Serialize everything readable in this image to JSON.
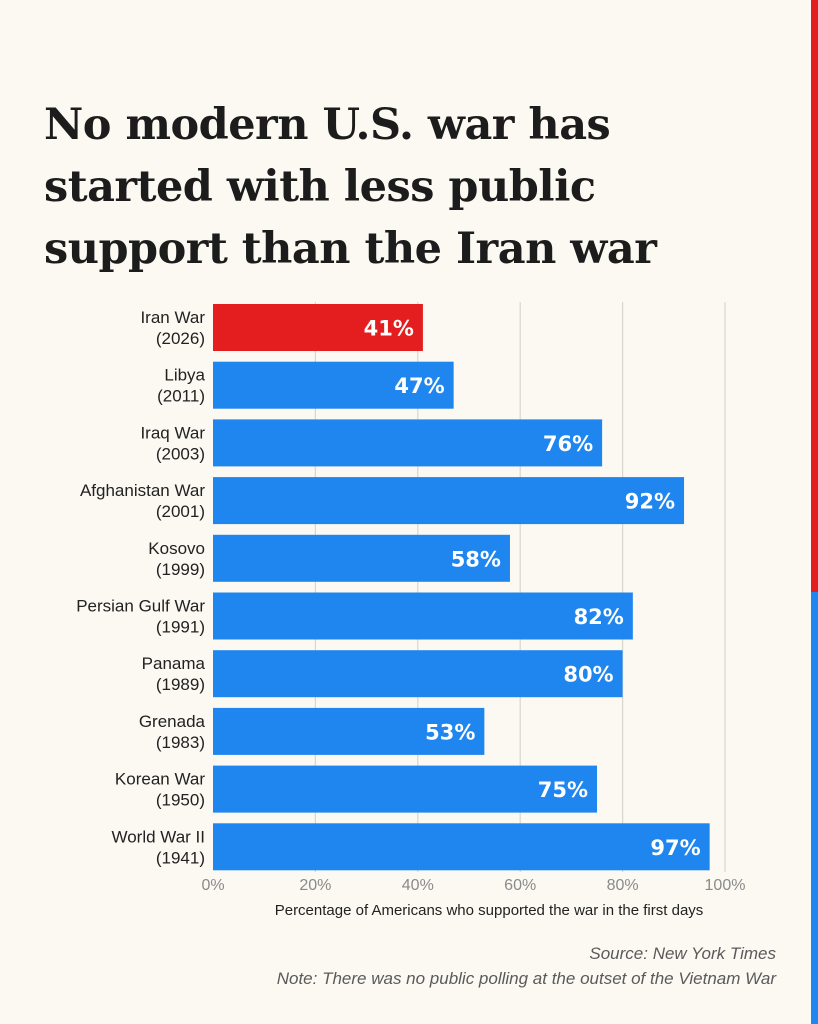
{
  "title": "No modern U.S. war has started with less public support than the Iran war",
  "colors": {
    "highlight": "#e41e1e",
    "bar": "#1f86f0",
    "grid": "#d9d6cd",
    "label": "#222222",
    "value_text": "#ffffff"
  },
  "chart_data": {
    "type": "bar",
    "orientation": "horizontal",
    "categories": [
      "Iran War|(2026)",
      "Libya|(2011)",
      "Iraq War|(2003)",
      "Afghanistan War|(2001)",
      "Kosovo|(1999)",
      "Persian Gulf War|(1991)",
      "Panama|(1989)",
      "Grenada|(1983)",
      "Korean War|(1950)",
      "World War II|(1941)"
    ],
    "values": [
      41,
      47,
      76,
      92,
      58,
      82,
      80,
      53,
      75,
      97
    ],
    "value_labels": [
      "41%",
      "47%",
      "76%",
      "92%",
      "58%",
      "82%",
      "80%",
      "53%",
      "75%",
      "97%"
    ],
    "highlight_index": 0,
    "xlim": [
      0,
      100
    ],
    "xticks": [
      0,
      20,
      40,
      60,
      80,
      100
    ],
    "xtick_labels": [
      "0%",
      "20%",
      "40%",
      "60%",
      "80%",
      "100%"
    ],
    "xlabel": "Percentage of Americans who supported the war in the first days",
    "ylabel": "",
    "grid": true
  },
  "footer": {
    "source": "Source: New York Times",
    "note": "Note: There was no public polling at the outset of the Vietnam War"
  }
}
